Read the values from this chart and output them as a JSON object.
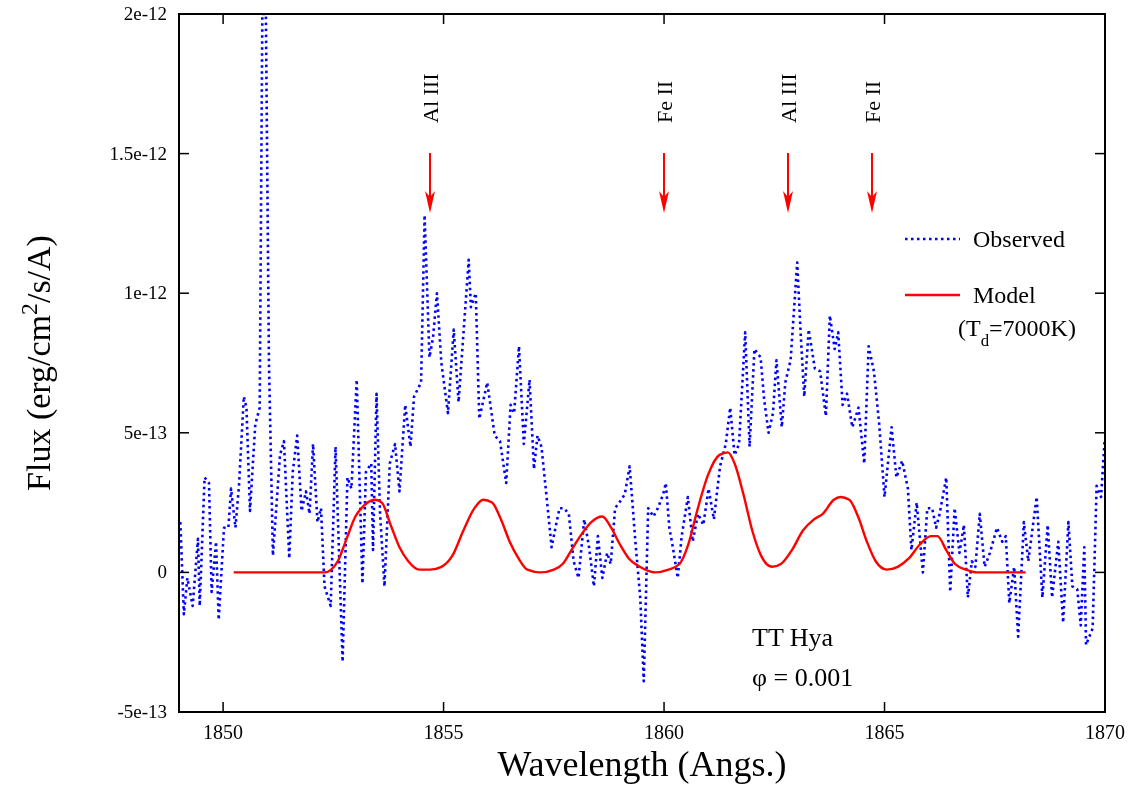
{
  "chart_data": {
    "type": "line",
    "xlabel": "Wavelength (Angs.)",
    "ylabel": "Flux (erg/cm$^{2}$/s/A)",
    "xlim": [
      1849,
      1870
    ],
    "xticks": [
      1850,
      1855,
      1860,
      1865,
      1870
    ],
    "ylim": [
      -5e-13,
      2e-12
    ],
    "yticks": [
      -5e-13,
      0,
      5e-13,
      1e-12,
      1.5e-12,
      2e-12
    ],
    "legend": "top right",
    "grid": false,
    "series": [
      {
        "name": "Observed",
        "color": "#0000ff",
        "line_style": "dotted",
        "x": [
          1849.03,
          1849.11,
          1849.19,
          1849.31,
          1849.43,
          1849.47,
          1849.58,
          1849.68,
          1849.74,
          1849.84,
          1849.9,
          1850.02,
          1850.12,
          1850.18,
          1850.28,
          1850.36,
          1850.47,
          1850.53,
          1850.61,
          1850.73,
          1850.83,
          1850.89,
          1850.97,
          1851.04,
          1851.13,
          1851.29,
          1851.38,
          1851.5,
          1851.58,
          1851.68,
          1851.78,
          1851.88,
          1851.96,
          1852.04,
          1852.14,
          1852.22,
          1852.3,
          1852.44,
          1852.55,
          1852.71,
          1852.82,
          1852.91,
          1853.03,
          1853.16,
          1853.24,
          1853.36,
          1853.4,
          1853.48,
          1853.56,
          1853.66,
          1853.78,
          1853.9,
          1854.0,
          1854.13,
          1854.25,
          1854.33,
          1854.49,
          1854.57,
          1854.68,
          1854.76,
          1854.85,
          1854.95,
          1855.1,
          1855.23,
          1855.34,
          1855.57,
          1855.62,
          1855.73,
          1855.81,
          1855.99,
          1856.16,
          1856.28,
          1856.42,
          1856.52,
          1856.6,
          1856.71,
          1856.82,
          1856.95,
          1857.05,
          1857.13,
          1857.22,
          1857.33,
          1857.45,
          1857.55,
          1857.63,
          1857.73,
          1857.84,
          1857.95,
          1858.06,
          1858.19,
          1858.3,
          1858.41,
          1858.5,
          1858.6,
          1858.71,
          1858.79,
          1858.89,
          1859.03,
          1859.11,
          1859.22,
          1859.35,
          1859.46,
          1859.54,
          1859.64,
          1859.76,
          1859.86,
          1859.98,
          1860.04,
          1860.12,
          1860.2,
          1860.31,
          1860.4,
          1860.54,
          1860.65,
          1860.77,
          1860.89,
          1861.01,
          1861.13,
          1861.27,
          1861.4,
          1861.5,
          1861.6,
          1861.7,
          1861.84,
          1861.94,
          1862.05,
          1862.19,
          1862.27,
          1862.37,
          1862.47,
          1862.55,
          1862.67,
          1862.75,
          1862.87,
          1863.02,
          1863.1,
          1863.18,
          1863.28,
          1863.42,
          1863.54,
          1863.67,
          1863.76,
          1863.87,
          1863.95,
          1864.05,
          1864.15,
          1864.27,
          1864.41,
          1864.54,
          1864.64,
          1864.76,
          1864.88,
          1865.0,
          1865.16,
          1865.27,
          1865.4,
          1865.53,
          1865.61,
          1865.73,
          1865.87,
          1865.97,
          1866.08,
          1866.17,
          1866.25,
          1866.4,
          1866.49,
          1866.59,
          1866.7,
          1866.8,
          1866.89,
          1866.98,
          1867.06,
          1867.16,
          1867.27,
          1867.39,
          1867.55,
          1867.67,
          1867.75,
          1867.83,
          1867.94,
          1868.03,
          1868.16,
          1868.26,
          1868.45,
          1868.58,
          1868.7,
          1868.8,
          1868.94,
          1869.05,
          1869.17,
          1869.26,
          1869.37,
          1869.45,
          1869.53,
          1869.57,
          1869.72,
          1869.81,
          1869.91,
          1869.99
        ],
        "values": [
          1.8e-13,
          -1.5e-13,
          -2e-14,
          -1.2e-13,
          1.2e-13,
          -1.2e-13,
          3.4e-13,
          3.2e-13,
          -7e-14,
          1.1e-13,
          -1.7e-13,
          1.6e-13,
          1.6e-13,
          3e-13,
          1.6e-13,
          3.1e-13,
          6.3e-13,
          5.9e-13,
          2.2e-13,
          5.3e-13,
          5.9e-13,
          2e-12,
          2e-12,
          7.5e-13,
          6e-14,
          4.2e-13,
          4.7e-13,
          5e-14,
          3.6e-13,
          4.9e-13,
          2.2e-13,
          2.9e-13,
          2.1e-13,
          4.6e-13,
          1.8e-13,
          2.3e-13,
          -5e-14,
          -1.2e-13,
          4.5e-13,
          -3.2e-13,
          3.4e-13,
          3e-13,
          6.9e-13,
          -4e-14,
          3.6e-13,
          3.9e-13,
          8e-14,
          6.4e-13,
          2.1e-13,
          -5e-14,
          3.9e-13,
          4.6e-13,
          2.9e-13,
          6e-13,
          4.5e-13,
          6.3e-13,
          6.8e-13,
          1.28e-12,
          7.7e-13,
          8.4e-13,
          1e-12,
          7.5e-13,
          5.7e-13,
          8.7e-13,
          6.1e-13,
          1.12e-12,
          9.5e-13,
          1e-12,
          5.5e-13,
          6.8e-13,
          4.9e-13,
          4.7e-13,
          3.2e-13,
          6e-13,
          5.7e-13,
          8.1e-13,
          4.6e-13,
          6.9e-13,
          3.7e-13,
          4.9e-13,
          4.5e-13,
          2.8e-13,
          9e-14,
          1.7e-13,
          2.3e-13,
          2.3e-13,
          2.1e-13,
          4e-14,
          -2e-14,
          1.9e-13,
          9e-14,
          -5e-14,
          1.3e-13,
          -2e-14,
          7e-14,
          3e-14,
          2.3e-13,
          2.6e-13,
          2.8e-13,
          3.8e-13,
          1.1e-13,
          -9e-14,
          -3.9e-13,
          2.3e-13,
          2e-13,
          2.3e-13,
          2.8e-13,
          3.2e-13,
          1.6e-13,
          9e-14,
          -2e-14,
          1.3e-13,
          2.7e-13,
          1.1e-13,
          2.1e-13,
          1.7e-13,
          3e-13,
          1.9e-13,
          3.8e-13,
          4.6e-13,
          5.9e-13,
          4.2e-13,
          4.6e-13,
          8.6e-13,
          4.5e-13,
          8e-13,
          7.7e-13,
          6.2e-13,
          5e-13,
          5.7e-13,
          7.6e-13,
          5.2e-13,
          6.8e-13,
          7.6e-13,
          1.11e-12,
          8.5e-13,
          6.3e-13,
          8.7e-13,
          7.3e-13,
          7.2e-13,
          5.6e-13,
          9.2e-13,
          8e-13,
          8.6e-13,
          6e-13,
          6.4e-13,
          5.2e-13,
          5.9e-13,
          3.9e-13,
          8.1e-13,
          7.2e-13,
          5.3e-13,
          2.7e-13,
          5.2e-13,
          3.4e-13,
          4e-13,
          3e-13,
          8e-14,
          2.5e-13,
          0,
          2.3e-13,
          2.3e-13,
          1.6e-13,
          2.1e-13,
          3.4e-13,
          -7e-14,
          2.3e-13,
          7e-14,
          1.7e-13,
          -9e-14,
          4e-14,
          2e-14,
          2.1e-13,
          2e-14,
          7e-14,
          1.6e-13,
          1.1e-13,
          1.3e-13,
          -1.1e-13,
          2e-14,
          -2.3e-13,
          1.8e-13,
          4e-14,
          2.7e-13,
          -9e-14,
          1.7e-13,
          -9e-14,
          1.1e-13,
          -1.8e-13,
          1.8e-13,
          -5e-14,
          -6e-14,
          -1.9e-13,
          9e-14,
          -2.6e-13,
          -2e-13,
          3.1e-13,
          2.7e-13,
          4.7e-13
        ]
      },
      {
        "name": "Model (T$_{d}$=7000K)",
        "color": "#ff0000",
        "line_style": "solid",
        "x": [
          1850.24,
          1852.3,
          1852.45,
          1852.6,
          1852.8,
          1853.0,
          1853.2,
          1853.45,
          1853.6,
          1853.8,
          1854.0,
          1854.2,
          1854.45,
          1854.7,
          1854.95,
          1855.2,
          1855.45,
          1855.7,
          1855.9,
          1856.1,
          1856.3,
          1856.5,
          1856.7,
          1856.9,
          1857.2,
          1857.5,
          1857.7,
          1857.9,
          1858.1,
          1858.35,
          1858.6,
          1858.8,
          1859.0,
          1859.2,
          1859.45,
          1859.8,
          1860.1,
          1860.35,
          1860.55,
          1860.75,
          1861.0,
          1861.25,
          1861.45,
          1861.6,
          1861.8,
          1862.0,
          1862.2,
          1862.45,
          1862.65,
          1862.9,
          1863.15,
          1863.4,
          1863.6,
          1863.85,
          1864.0,
          1864.2,
          1864.4,
          1864.6,
          1864.8,
          1865.05,
          1865.3,
          1865.55,
          1865.8,
          1866.05,
          1866.2,
          1866.4,
          1866.6,
          1866.85,
          1867.1,
          1868.2
        ],
        "values": [
          0,
          0,
          1e-14,
          4e-14,
          1.2e-13,
          2e-13,
          2.4e-13,
          2.6e-13,
          2.5e-13,
          1.7e-13,
          9e-14,
          4e-14,
          1e-14,
          1e-14,
          2e-14,
          6e-14,
          1.5e-13,
          2.3e-13,
          2.6e-13,
          2.5e-13,
          1.9e-13,
          1.1e-13,
          5e-14,
          1e-14,
          0,
          1e-14,
          3e-14,
          8e-14,
          1.3e-13,
          1.8e-13,
          2e-13,
          1.6e-13,
          1e-13,
          5e-14,
          2e-14,
          0,
          1e-14,
          3e-14,
          1e-13,
          2.2e-13,
          3.5e-13,
          4.2e-13,
          4.3e-13,
          3.9e-13,
          2.8e-13,
          1.5e-13,
          6e-14,
          2e-14,
          3e-14,
          8e-14,
          1.5e-13,
          1.9e-13,
          2.1e-13,
          2.6e-13,
          2.7e-13,
          2.6e-13,
          2e-13,
          1.1e-13,
          4e-14,
          1e-14,
          2e-14,
          5e-14,
          1e-13,
          1.3e-13,
          1.3e-13,
          8e-14,
          3e-14,
          1e-14,
          0,
          0
        ]
      }
    ],
    "annotations": [
      "Al III",
      "Fe II",
      "Al III",
      "Fe II",
      "TT Hya",
      "φ = 0.001"
    ]
  }
}
